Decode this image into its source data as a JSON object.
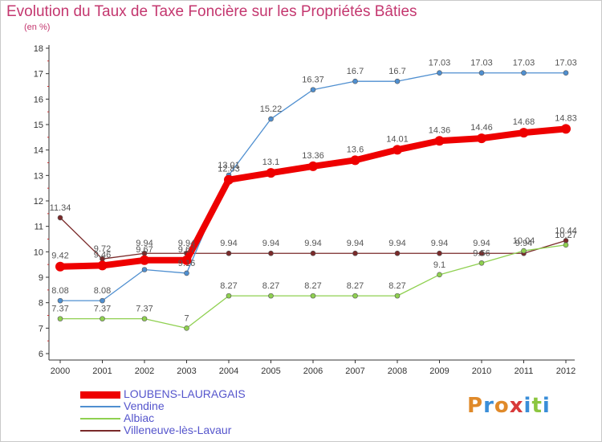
{
  "title": "Evolution du Taux de Taxe Foncière sur les Propriétés Bâties",
  "unit": "(en %)",
  "logo": {
    "text": "Proxiti",
    "colors": [
      "#e08a2a",
      "#3a8ed8",
      "#e08a2a",
      "#d83a3a",
      "#3a8ed8",
      "#8cc63f",
      "#3a8ed8"
    ]
  },
  "chart_data": {
    "type": "line",
    "x": [
      "2000",
      "2001",
      "2002",
      "2003",
      "2004",
      "2005",
      "2006",
      "2007",
      "2008",
      "2009",
      "2010",
      "2011",
      "2012"
    ],
    "ylim": [
      6,
      18
    ],
    "yticks": [
      6,
      7,
      8,
      9,
      10,
      11,
      12,
      13,
      14,
      15,
      16,
      17,
      18
    ],
    "grid": false,
    "legend_position": "bottom-left",
    "series": [
      {
        "name": "LOUBENS-LAURAGAIS",
        "color": "#ee0000",
        "values": [
          9.42,
          9.46,
          9.67,
          9.67,
          12.83,
          13.1,
          13.36,
          13.6,
          14.01,
          14.36,
          14.46,
          14.68,
          14.83
        ],
        "labels": [
          "9.42",
          "9.46",
          "9.67",
          "9.67",
          "12.83",
          "13.1",
          "13.36",
          "13.6",
          "14.01",
          "14.36",
          "14.46",
          "14.68",
          "14.83"
        ]
      },
      {
        "name": "Vendine",
        "color": "#4f8fd0",
        "values": [
          8.08,
          8.08,
          9.3,
          9.16,
          13.01,
          15.22,
          16.37,
          16.7,
          16.7,
          17.03,
          17.03,
          17.03,
          17.03
        ],
        "labels": [
          "8.08",
          "8.08",
          "",
          "9.16",
          "13.01",
          "15.22",
          "16.37",
          "16.7",
          "16.7",
          "17.03",
          "17.03",
          "17.03",
          "17.03"
        ]
      },
      {
        "name": "Albiac",
        "color": "#8fd050",
        "values": [
          7.37,
          7.37,
          7.37,
          7,
          8.27,
          8.27,
          8.27,
          8.27,
          8.27,
          9.1,
          9.56,
          10.04,
          10.27
        ],
        "labels": [
          "7.37",
          "7.37",
          "7.37",
          "7",
          "8.27",
          "8.27",
          "8.27",
          "8.27",
          "8.27",
          "9.1",
          "9.56",
          "10.04",
          "10.27"
        ]
      },
      {
        "name": "Villeneuve-lès-Lavaur",
        "color": "#7a2a2a",
        "values": [
          11.34,
          9.72,
          9.94,
          9.94,
          9.94,
          9.94,
          9.94,
          9.94,
          9.94,
          9.94,
          9.94,
          9.94,
          10.44
        ],
        "labels": [
          "11.34",
          "9.72",
          "9.94",
          "9.94",
          "9.94",
          "9.94",
          "9.94",
          "9.94",
          "9.94",
          "9.94",
          "9.94",
          "9.94",
          "10.44"
        ]
      }
    ]
  }
}
